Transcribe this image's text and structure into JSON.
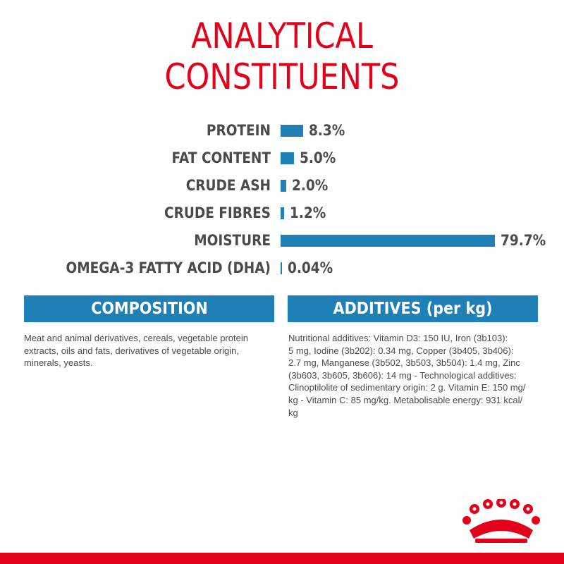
{
  "title": {
    "line1": "ANALYTICAL",
    "line2": "CONSTITUENTS"
  },
  "colors": {
    "brand_red": "#e2001a",
    "bar_blue": "#1f80b8",
    "text_gray": "#4a4a4a"
  },
  "chart_data": {
    "type": "bar",
    "orientation": "horizontal",
    "title": "ANALYTICAL CONSTITUENTS",
    "categories": [
      "PROTEIN",
      "FAT CONTENT",
      "CRUDE ASH",
      "CRUDE FIBRES",
      "MOISTURE",
      "OMEGA-3 FATTY ACID (DHA)"
    ],
    "values": [
      8.3,
      5.0,
      2.0,
      1.2,
      79.7,
      0.04
    ],
    "value_labels": [
      "8.3%",
      "5.0%",
      "2.0%",
      "1.2%",
      "79.7%",
      "0.04%"
    ],
    "unit": "%",
    "grid": false
  },
  "composition": {
    "heading": "COMPOSITION",
    "lines": [
      "Meat and animal derivatives, cereals, vegetable protein",
      "extracts, oils and fats, derivatives of vegetable origin,",
      "minerals, yeasts."
    ]
  },
  "additives": {
    "heading": "ADDITIVES (per kg)",
    "lines": [
      "Nutritional additives: Vitamin D3: 150 IU, Iron (3b103):",
      "5 mg, Iodine (3b202): 0.34 mg, Copper (3b405, 3b406):",
      "2.7 mg, Manganese (3b502, 3b503, 3b504): 1.4 mg, Zinc",
      "(3b603, 3b605, 3b606): 14 mg - Technological additives:",
      "Clinoptilolite of sedimentary origin: 2 g. Vitamin E: 150 mg/",
      "kg - Vitamin C: 85 mg/kg. Metabolisable energy: 931 kcal/",
      "kg"
    ]
  },
  "logo": {
    "icon": "royal-crown-logo"
  }
}
